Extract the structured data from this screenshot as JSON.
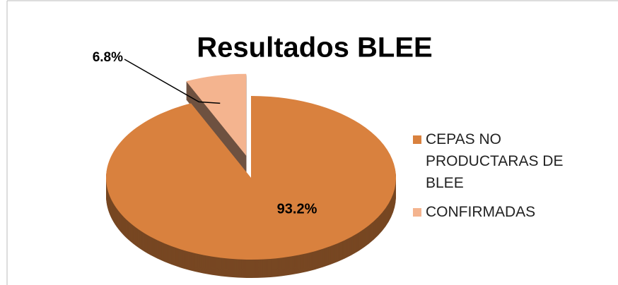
{
  "chart_data": {
    "type": "pie",
    "title": "Resultados BLEE",
    "categories": [
      "CEPAS NO PRODUCTARAS DE BLEE",
      "CONFIRMADAS"
    ],
    "values": [
      93.2,
      6.8
    ],
    "value_labels": [
      "93.2%",
      "6.8%"
    ],
    "colors": [
      "#d9813e",
      "#f4b48f"
    ],
    "legend": "right"
  }
}
